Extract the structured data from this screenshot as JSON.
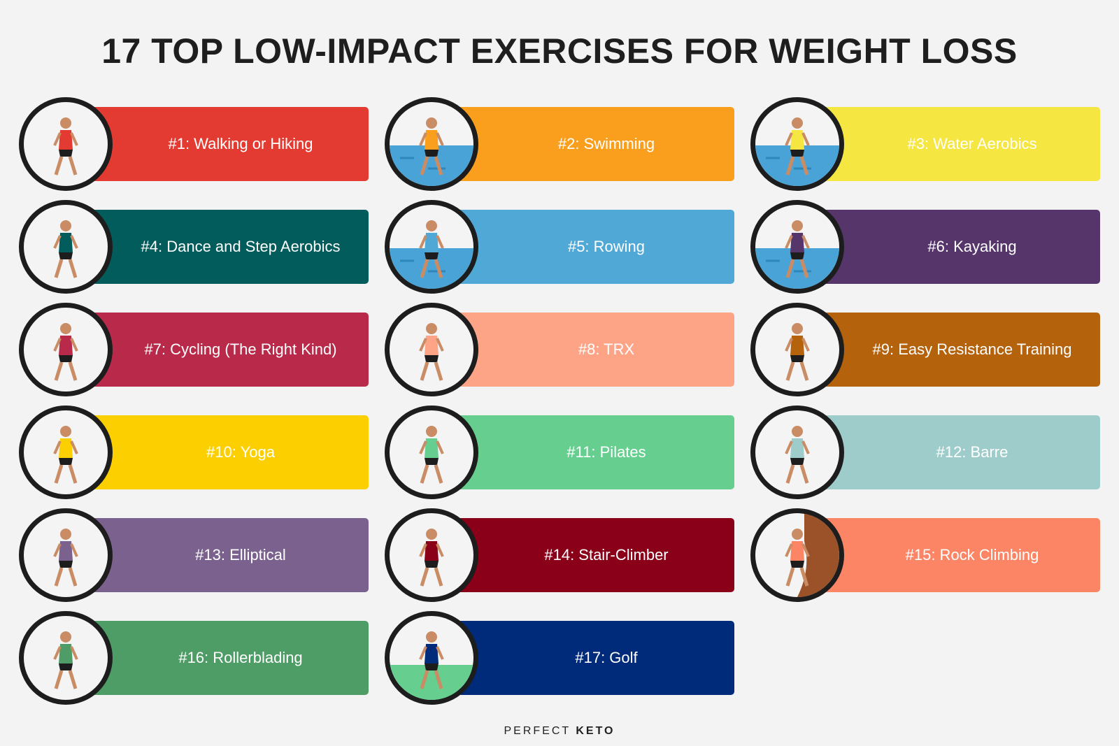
{
  "title": "17 TOP LOW-IMPACT EXERCISES FOR WEIGHT LOSS",
  "exercises": [
    {
      "label": "#1: Walking or Hiking",
      "color": "#e33b31",
      "icon": "walking-icon",
      "bg": "none"
    },
    {
      "label": "#2: Swimming",
      "color": "#f99f1d",
      "icon": "swimming-icon",
      "bg": "water"
    },
    {
      "label": "#3: Water Aerobics",
      "color": "#f5e642",
      "icon": "water-aerobics-icon",
      "bg": "water"
    },
    {
      "label": "#4: Dance and Step Aerobics",
      "color": "#035c5c",
      "icon": "step-aerobics-icon",
      "bg": "none"
    },
    {
      "label": "#5: Rowing",
      "color": "#4fa8d6",
      "icon": "rowing-icon",
      "bg": "water"
    },
    {
      "label": "#6: Kayaking",
      "color": "#55356a",
      "icon": "kayaking-icon",
      "bg": "water"
    },
    {
      "label": "#7: Cycling (The Right Kind)",
      "color": "#b8294a",
      "icon": "cycling-icon",
      "bg": "none"
    },
    {
      "label": "#8: TRX",
      "color": "#fda487",
      "icon": "trx-icon",
      "bg": "none"
    },
    {
      "label": "#9: Easy Resistance Training",
      "color": "#b5620c",
      "icon": "resistance-band-icon",
      "bg": "none"
    },
    {
      "label": "#10: Yoga",
      "color": "#fcd000",
      "icon": "yoga-icon",
      "bg": "none"
    },
    {
      "label": "#11: Pilates",
      "color": "#66cf8f",
      "icon": "pilates-icon",
      "bg": "none"
    },
    {
      "label": "#12: Barre",
      "color": "#9ecccb",
      "icon": "barre-icon",
      "bg": "none"
    },
    {
      "label": "#13: Elliptical",
      "color": "#7b628e",
      "icon": "elliptical-icon",
      "bg": "none"
    },
    {
      "label": "#14: Stair-Climber",
      "color": "#8a0019",
      "icon": "stair-climber-icon",
      "bg": "none"
    },
    {
      "label": "#15: Rock Climbing",
      "color": "#fc8566",
      "icon": "rock-climbing-icon",
      "bg": "rock"
    },
    {
      "label": "#16: Rollerblading",
      "color": "#4e9c66",
      "icon": "rollerblading-icon",
      "bg": "none"
    },
    {
      "label": "#17: Golf",
      "color": "#002a7a",
      "icon": "golf-icon",
      "bg": "grass"
    }
  ],
  "logo": {
    "light": "PERFECT",
    "bold": "KETO"
  }
}
